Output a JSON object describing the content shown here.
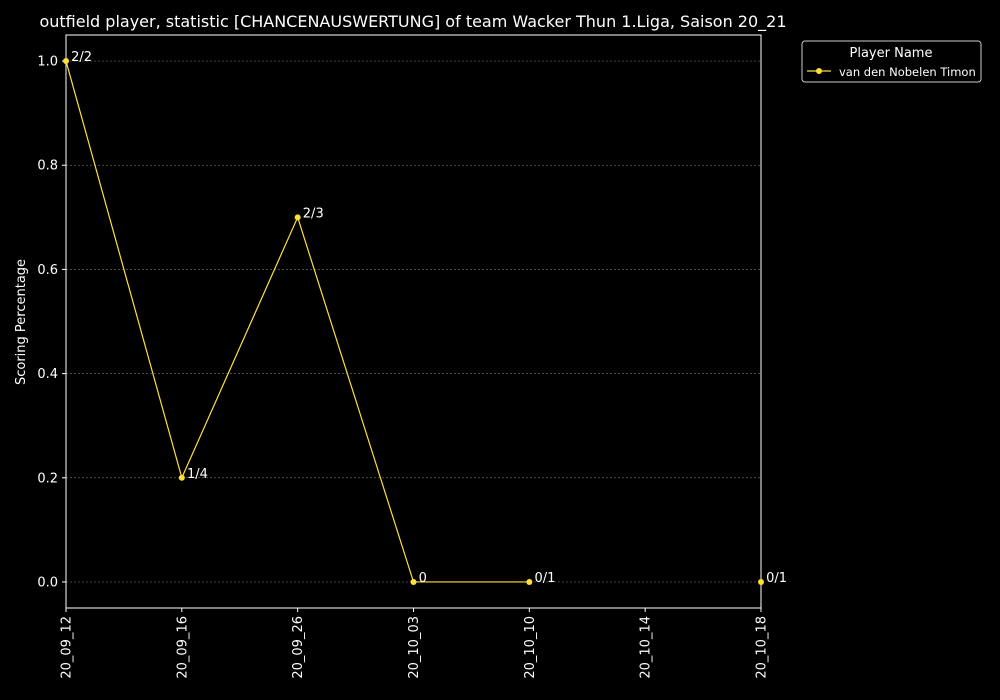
{
  "chart_data": {
    "type": "line",
    "title": "outfield player, statistic [CHANCENAUSWERTUNG] of team Wacker Thun 1.Liga, Saison 20_21",
    "xlabel": "",
    "ylabel": "Scoring Percentage",
    "categories": [
      "20_09_12",
      "20_09_16",
      "20_09_26",
      "20_10_03",
      "20_10_10",
      "20_10_14",
      "20_10_18"
    ],
    "ylim": [
      -0.05,
      1.05
    ],
    "yticks": [
      "0.0",
      "0.2",
      "0.4",
      "0.6",
      "0.8",
      "1.0"
    ],
    "grid": true,
    "legend": {
      "title": "Player Name",
      "placement": "outside-top-right"
    },
    "series": [
      {
        "name": "van den Nobelen Timon",
        "color": "#ffe135",
        "points": [
          {
            "x": "20_09_12",
            "y": 1.0,
            "label": "2/2"
          },
          {
            "x": "20_09_16",
            "y": 0.2,
            "label": "1/4"
          },
          {
            "x": "20_09_26",
            "y": 0.7,
            "label": "2/3"
          },
          {
            "x": "20_10_03",
            "y": 0.0,
            "label": "0"
          },
          {
            "x": "20_10_10",
            "y": 0.0,
            "label": "0/1"
          },
          {
            "x": "20_10_18",
            "y": 0.0,
            "label": "0/1"
          }
        ],
        "connected_through": "20_10_10"
      }
    ]
  }
}
